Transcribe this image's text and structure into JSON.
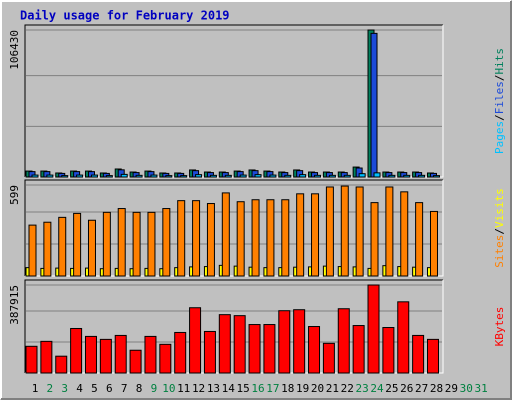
{
  "chart_data": {
    "type": "bar",
    "title": "Daily usage for February 2019",
    "legend_separator": "/",
    "categories": [
      "1",
      "2",
      "3",
      "4",
      "5",
      "6",
      "7",
      "8",
      "9",
      "10",
      "11",
      "12",
      "13",
      "14",
      "15",
      "16",
      "17",
      "18",
      "19",
      "20",
      "21",
      "22",
      "23",
      "24",
      "25",
      "26",
      "27",
      "28",
      "29",
      "30",
      "31"
    ],
    "category_colors": [
      "#000000",
      "#008040",
      "#008040",
      "#000000",
      "#000000",
      "#000000",
      "#000000",
      "#000000",
      "#008040",
      "#008040",
      "#000000",
      "#000000",
      "#000000",
      "#000000",
      "#000000",
      "#008040",
      "#008040",
      "#000000",
      "#000000",
      "#000000",
      "#000000",
      "#000000",
      "#008040",
      "#008040",
      "#000000",
      "#000000",
      "#000000",
      "#000000",
      "#000000",
      "#008040",
      "#008040"
    ],
    "panels": [
      {
        "ylim": [
          0,
          106430
        ],
        "yticks": [
          106430
        ],
        "series": [
          {
            "name": "Pages",
            "color": "#00c0ff",
            "values": [
              1400,
              1400,
              1000,
              1400,
              1400,
              1000,
              1900,
              1200,
              1400,
              1000,
              1000,
              1700,
              1200,
              1200,
              1400,
              1700,
              1400,
              1200,
              1700,
              1200,
              1200,
              1200,
              2400,
              3000,
              1200,
              1200,
              1200,
              1000,
              null,
              null,
              null
            ]
          },
          {
            "name": "Files",
            "color": "#1c4bd9",
            "values": [
              3900,
              3900,
              2600,
              3900,
              3900,
              2600,
              5200,
              3200,
              3900,
              2600,
              2600,
              4600,
              3200,
              3200,
              3900,
              4600,
              3900,
              3200,
              4600,
              3200,
              3200,
              3200,
              6500,
              104000,
              3200,
              3200,
              3200,
              2600,
              null,
              null,
              null
            ]
          },
          {
            "name": "Hits",
            "color": "#00805c",
            "values": [
              4300,
              4300,
              2900,
              4300,
              4300,
              2900,
              5800,
              3600,
              4300,
              2900,
              2900,
              5100,
              3600,
              3600,
              4300,
              5100,
              4300,
              3600,
              5100,
              3600,
              3600,
              3600,
              7200,
              106430,
              3600,
              3600,
              3600,
              2900,
              null,
              null,
              null
            ]
          }
        ]
      },
      {
        "ylim": [
          0,
          599
        ],
        "yticks": [
          599
        ],
        "series": [
          {
            "name": "Sites",
            "color": "#ff8000",
            "values": [
              335,
              354,
              386,
              412,
              367,
              419,
              444,
              419,
              419,
              444,
              496,
              496,
              477,
              547,
              489,
              502,
              502,
              502,
              541,
              541,
              586,
              592,
              586,
              483,
              586,
              554,
              483,
              425,
              null,
              null,
              null
            ]
          },
          {
            "name": "Visits",
            "color": "#ffff00",
            "values": [
              55,
              50,
              52,
              50,
              52,
              48,
              50,
              48,
              50,
              48,
              55,
              60,
              62,
              70,
              65,
              58,
              55,
              55,
              58,
              60,
              65,
              62,
              60,
              50,
              68,
              62,
              58,
              55,
              null,
              null,
              null
            ]
          }
        ]
      },
      {
        "ylim": [
          0,
          387915
        ],
        "yticks": [
          387915
        ],
        "series": [
          {
            "name": "KBytes",
            "color": "#ff0000",
            "values": [
              117700,
              139500,
              74100,
              196200,
              161300,
              148200,
              165600,
              100300,
              161300,
              126400,
              178700,
              287700,
              183100,
              257200,
              252800,
              213600,
              213600,
              274600,
              279000,
              204900,
              130800,
              283300,
              209200,
              387915,
              200500,
              313800,
              165600,
              148200,
              null,
              null,
              null
            ]
          }
        ]
      }
    ]
  }
}
